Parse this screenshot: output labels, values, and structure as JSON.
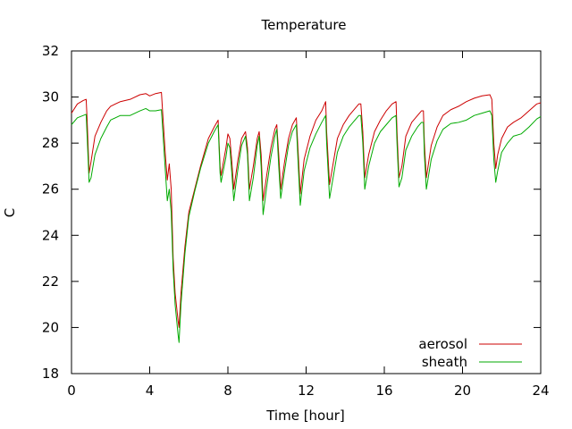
{
  "chart_data": {
    "type": "line",
    "title": "Temperature",
    "xlabel": "Time [hour]",
    "ylabel": "C",
    "xlim": [
      0,
      24
    ],
    "ylim": [
      18,
      32
    ],
    "xticks": [
      0,
      4,
      8,
      12,
      16,
      20,
      24
    ],
    "yticks": [
      18,
      20,
      22,
      24,
      26,
      28,
      30,
      32
    ],
    "grid": false,
    "legend_position": "bottom-right",
    "series": [
      {
        "name": "aerosol",
        "color": "#cc0000",
        "points": [
          [
            0,
            29.3
          ],
          [
            0.3,
            29.7
          ],
          [
            0.6,
            29.85
          ],
          [
            0.75,
            29.9
          ],
          [
            0.8,
            29.0
          ],
          [
            0.9,
            26.7
          ],
          [
            1.0,
            27.2
          ],
          [
            1.2,
            28.3
          ],
          [
            1.5,
            28.9
          ],
          [
            1.8,
            29.4
          ],
          [
            2.0,
            29.6
          ],
          [
            2.5,
            29.8
          ],
          [
            3.0,
            29.9
          ],
          [
            3.5,
            30.1
          ],
          [
            3.8,
            30.15
          ],
          [
            4.0,
            30.05
          ],
          [
            4.3,
            30.15
          ],
          [
            4.6,
            30.2
          ],
          [
            4.65,
            29.5
          ],
          [
            4.8,
            27.5
          ],
          [
            4.9,
            26.4
          ],
          [
            5.0,
            27.1
          ],
          [
            5.1,
            26.0
          ],
          [
            5.2,
            23.0
          ],
          [
            5.3,
            21.5
          ],
          [
            5.45,
            20.3
          ],
          [
            5.5,
            20.0
          ],
          [
            5.6,
            21.5
          ],
          [
            5.8,
            23.5
          ],
          [
            6.0,
            25.0
          ],
          [
            6.3,
            26.0
          ],
          [
            6.6,
            27.0
          ],
          [
            7.0,
            28.2
          ],
          [
            7.3,
            28.7
          ],
          [
            7.5,
            29.0
          ],
          [
            7.6,
            27.0
          ],
          [
            7.65,
            26.6
          ],
          [
            7.9,
            27.8
          ],
          [
            8.0,
            28.4
          ],
          [
            8.1,
            28.2
          ],
          [
            8.2,
            27.2
          ],
          [
            8.3,
            26.0
          ],
          [
            8.5,
            27.2
          ],
          [
            8.7,
            28.2
          ],
          [
            8.9,
            28.5
          ],
          [
            9.0,
            27.8
          ],
          [
            9.1,
            26.0
          ],
          [
            9.3,
            27.0
          ],
          [
            9.5,
            28.2
          ],
          [
            9.6,
            28.5
          ],
          [
            9.7,
            27.5
          ],
          [
            9.8,
            25.5
          ],
          [
            10.0,
            26.7
          ],
          [
            10.2,
            27.8
          ],
          [
            10.4,
            28.6
          ],
          [
            10.5,
            28.8
          ],
          [
            10.6,
            27.5
          ],
          [
            10.7,
            26.0
          ],
          [
            10.9,
            27.2
          ],
          [
            11.1,
            28.2
          ],
          [
            11.3,
            28.8
          ],
          [
            11.5,
            29.1
          ],
          [
            11.6,
            27.5
          ],
          [
            11.7,
            25.8
          ],
          [
            11.9,
            27.3
          ],
          [
            12.2,
            28.3
          ],
          [
            12.5,
            29.0
          ],
          [
            12.8,
            29.4
          ],
          [
            13.0,
            29.8
          ],
          [
            13.05,
            28.5
          ],
          [
            13.2,
            26.2
          ],
          [
            13.4,
            27.2
          ],
          [
            13.6,
            28.2
          ],
          [
            13.9,
            28.8
          ],
          [
            14.2,
            29.2
          ],
          [
            14.5,
            29.5
          ],
          [
            14.7,
            29.7
          ],
          [
            14.8,
            29.7
          ],
          [
            14.9,
            28.5
          ],
          [
            15.0,
            26.5
          ],
          [
            15.2,
            27.5
          ],
          [
            15.5,
            28.5
          ],
          [
            15.8,
            29.0
          ],
          [
            16.1,
            29.4
          ],
          [
            16.4,
            29.7
          ],
          [
            16.6,
            29.8
          ],
          [
            16.65,
            28.5
          ],
          [
            16.75,
            26.5
          ],
          [
            16.9,
            27.0
          ],
          [
            17.1,
            28.3
          ],
          [
            17.4,
            28.9
          ],
          [
            17.7,
            29.2
          ],
          [
            17.9,
            29.4
          ],
          [
            18.0,
            29.4
          ],
          [
            18.05,
            28.0
          ],
          [
            18.15,
            26.5
          ],
          [
            18.4,
            27.9
          ],
          [
            18.7,
            28.7
          ],
          [
            19.0,
            29.2
          ],
          [
            19.4,
            29.45
          ],
          [
            19.8,
            29.6
          ],
          [
            20.2,
            29.8
          ],
          [
            20.6,
            29.95
          ],
          [
            21.0,
            30.05
          ],
          [
            21.4,
            30.1
          ],
          [
            21.5,
            29.9
          ],
          [
            21.6,
            28.0
          ],
          [
            21.7,
            26.9
          ],
          [
            21.8,
            27.5
          ],
          [
            22.0,
            28.2
          ],
          [
            22.3,
            28.7
          ],
          [
            22.6,
            28.9
          ],
          [
            23.0,
            29.1
          ],
          [
            23.4,
            29.4
          ],
          [
            23.8,
            29.7
          ],
          [
            24.0,
            29.75
          ]
        ]
      },
      {
        "name": "sheath",
        "color": "#00aa00",
        "points": [
          [
            0,
            28.8
          ],
          [
            0.3,
            29.1
          ],
          [
            0.6,
            29.2
          ],
          [
            0.75,
            29.25
          ],
          [
            0.8,
            28.3
          ],
          [
            0.9,
            26.3
          ],
          [
            1.0,
            26.5
          ],
          [
            1.2,
            27.5
          ],
          [
            1.5,
            28.2
          ],
          [
            1.8,
            28.7
          ],
          [
            2.0,
            29.0
          ],
          [
            2.5,
            29.2
          ],
          [
            3.0,
            29.2
          ],
          [
            3.5,
            29.4
          ],
          [
            3.8,
            29.5
          ],
          [
            4.0,
            29.4
          ],
          [
            4.3,
            29.4
          ],
          [
            4.6,
            29.45
          ],
          [
            4.65,
            28.8
          ],
          [
            4.8,
            26.8
          ],
          [
            4.9,
            25.5
          ],
          [
            5.0,
            26.0
          ],
          [
            5.1,
            25.0
          ],
          [
            5.2,
            22.5
          ],
          [
            5.3,
            21.0
          ],
          [
            5.45,
            19.7
          ],
          [
            5.5,
            19.35
          ],
          [
            5.6,
            21.0
          ],
          [
            5.8,
            23.2
          ],
          [
            6.0,
            24.8
          ],
          [
            6.3,
            25.9
          ],
          [
            6.6,
            26.9
          ],
          [
            7.0,
            28.0
          ],
          [
            7.3,
            28.5
          ],
          [
            7.5,
            28.8
          ],
          [
            7.6,
            26.7
          ],
          [
            7.65,
            26.3
          ],
          [
            7.9,
            27.4
          ],
          [
            8.0,
            28.0
          ],
          [
            8.1,
            27.8
          ],
          [
            8.2,
            26.7
          ],
          [
            8.3,
            25.5
          ],
          [
            8.5,
            26.8
          ],
          [
            8.7,
            27.9
          ],
          [
            8.9,
            28.3
          ],
          [
            9.0,
            27.5
          ],
          [
            9.1,
            25.5
          ],
          [
            9.3,
            26.5
          ],
          [
            9.5,
            27.9
          ],
          [
            9.6,
            28.3
          ],
          [
            9.7,
            27.0
          ],
          [
            9.8,
            24.9
          ],
          [
            10.0,
            26.2
          ],
          [
            10.2,
            27.4
          ],
          [
            10.4,
            28.3
          ],
          [
            10.5,
            28.6
          ],
          [
            10.6,
            27.0
          ],
          [
            10.7,
            25.6
          ],
          [
            10.9,
            26.8
          ],
          [
            11.1,
            27.9
          ],
          [
            11.3,
            28.5
          ],
          [
            11.5,
            28.8
          ],
          [
            11.6,
            27.0
          ],
          [
            11.7,
            25.3
          ],
          [
            11.9,
            26.8
          ],
          [
            12.2,
            27.8
          ],
          [
            12.5,
            28.4
          ],
          [
            12.8,
            28.9
          ],
          [
            13.0,
            29.2
          ],
          [
            13.05,
            28.0
          ],
          [
            13.2,
            25.6
          ],
          [
            13.4,
            26.6
          ],
          [
            13.6,
            27.6
          ],
          [
            13.9,
            28.3
          ],
          [
            14.2,
            28.7
          ],
          [
            14.5,
            29.0
          ],
          [
            14.7,
            29.2
          ],
          [
            14.8,
            29.2
          ],
          [
            14.9,
            28.0
          ],
          [
            15.0,
            26.0
          ],
          [
            15.2,
            27.0
          ],
          [
            15.5,
            28.0
          ],
          [
            15.8,
            28.5
          ],
          [
            16.1,
            28.8
          ],
          [
            16.4,
            29.1
          ],
          [
            16.6,
            29.2
          ],
          [
            16.65,
            28.0
          ],
          [
            16.75,
            26.1
          ],
          [
            16.9,
            26.5
          ],
          [
            17.1,
            27.7
          ],
          [
            17.4,
            28.3
          ],
          [
            17.7,
            28.7
          ],
          [
            17.9,
            28.9
          ],
          [
            18.0,
            28.9
          ],
          [
            18.05,
            27.5
          ],
          [
            18.15,
            26.0
          ],
          [
            18.4,
            27.3
          ],
          [
            18.7,
            28.1
          ],
          [
            19.0,
            28.6
          ],
          [
            19.4,
            28.85
          ],
          [
            19.8,
            28.9
          ],
          [
            20.2,
            29.0
          ],
          [
            20.6,
            29.2
          ],
          [
            21.0,
            29.3
          ],
          [
            21.4,
            29.4
          ],
          [
            21.5,
            29.2
          ],
          [
            21.6,
            27.3
          ],
          [
            21.7,
            26.3
          ],
          [
            21.8,
            26.8
          ],
          [
            22.0,
            27.6
          ],
          [
            22.3,
            28.0
          ],
          [
            22.6,
            28.3
          ],
          [
            23.0,
            28.4
          ],
          [
            23.4,
            28.7
          ],
          [
            23.8,
            29.05
          ],
          [
            24.0,
            29.15
          ]
        ]
      }
    ]
  }
}
